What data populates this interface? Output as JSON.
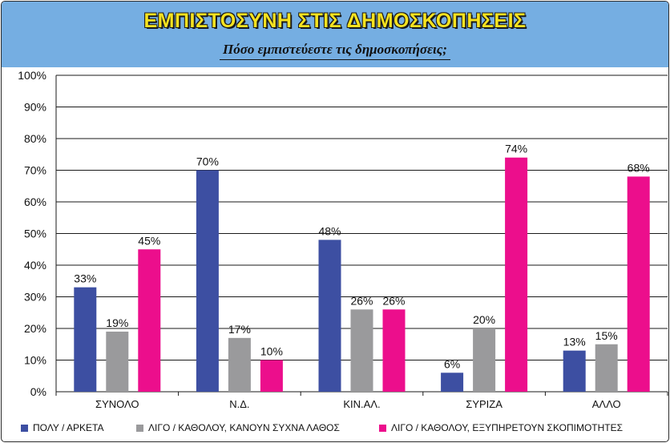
{
  "title": "ΕΜΠΙΣΤΟΣΥΝΗ ΣΤΙΣ ΔΗΜΟΣΚΟΠΗΣΕΙΣ",
  "subtitle": "Πόσο εμπιστεύεστε τις δημοσκοπήσεις;",
  "colors": {
    "header_bg": "#75aee2",
    "title_text": "#f5e21f",
    "series": [
      "#3d4fa2",
      "#9a9a9c",
      "#ec0e8c"
    ]
  },
  "chart_data": {
    "type": "bar",
    "categories": [
      "ΣΥΝΟΛΟ",
      "Ν.Δ.",
      "ΚΙΝ.ΑΛ.",
      "ΣΥΡΙΖΑ",
      "ΑΛΛΟ"
    ],
    "series": [
      {
        "name": "ΠΟΛΥ / ΑΡΚΕΤΑ",
        "values": [
          33,
          70,
          48,
          6,
          13
        ],
        "labels": [
          "33%",
          "70%",
          "48%",
          "6%",
          "13%"
        ]
      },
      {
        "name": "ΛΙΓΟ / ΚΑΘΟΛΟΥ, ΚΑΝΟΥΝ ΣΥΧΝΑ ΛΑΘΟΣ",
        "values": [
          19,
          17,
          26,
          20,
          15
        ],
        "labels": [
          "19%",
          "17%",
          "26%",
          "20%",
          "15%"
        ]
      },
      {
        "name": "ΛΙΓΟ / ΚΑΘΟΛΟΥ, ΕΞΥΠΗΡΕΤΟΥΝ ΣΚΟΠΙΜΟΤΗΤΕΣ",
        "values": [
          45,
          10,
          26,
          74,
          68
        ],
        "labels": [
          "45%",
          "10%",
          "26%",
          "74%",
          "68%"
        ]
      }
    ],
    "ylim": [
      0,
      100
    ],
    "yticks": [
      0,
      10,
      20,
      30,
      40,
      50,
      60,
      70,
      80,
      90,
      100
    ],
    "ytick_labels": [
      "0%",
      "10%",
      "20%",
      "30%",
      "40%",
      "50%",
      "60%",
      "70%",
      "80%",
      "90%",
      "100%"
    ],
    "grid": true,
    "legend": "bottom"
  }
}
